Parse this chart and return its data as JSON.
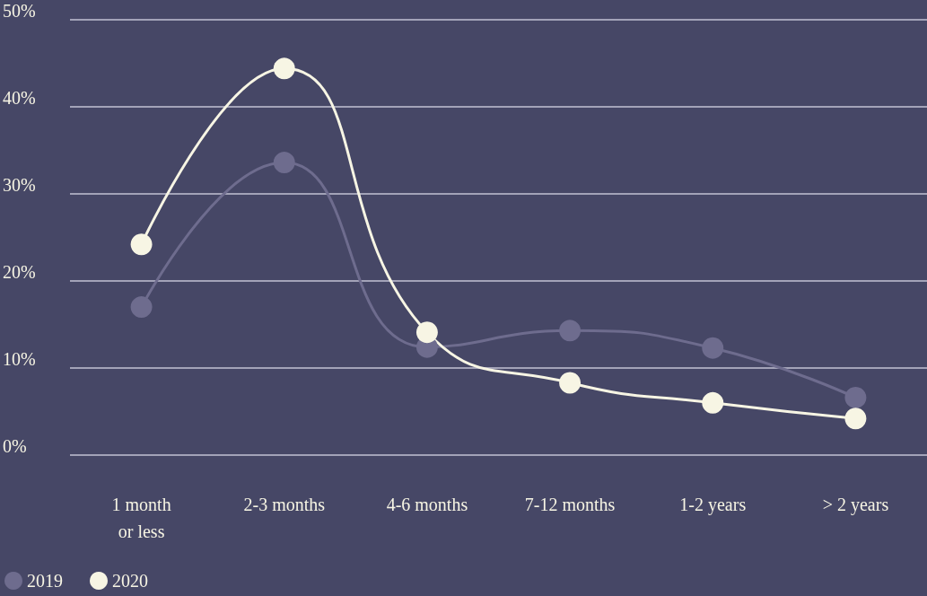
{
  "chart_data": {
    "type": "line",
    "categories": [
      "1 month\nor less",
      "2-3 months",
      "4-6 months",
      "7-12 months",
      "1-2 years",
      "> 2 years"
    ],
    "series": [
      {
        "name": "2019",
        "color": "#6e6c8e",
        "values": [
          17.0,
          33.6,
          12.4,
          14.3,
          12.3,
          6.6
        ]
      },
      {
        "name": "2020",
        "color": "#f7f5e4",
        "values": [
          24.2,
          44.4,
          14.1,
          8.3,
          6.0,
          4.2
        ]
      }
    ],
    "ylim": [
      0,
      50
    ],
    "yticks": [
      {
        "value": 0,
        "label": "0%"
      },
      {
        "value": 10,
        "label": "10%"
      },
      {
        "value": 20,
        "label": "20%"
      },
      {
        "value": 30,
        "label": "30%"
      },
      {
        "value": 40,
        "label": "40%"
      },
      {
        "value": 50,
        "label": "50%"
      }
    ],
    "grid": "y",
    "legend": "bottom left",
    "marker": "circle",
    "line_style": "solid"
  }
}
